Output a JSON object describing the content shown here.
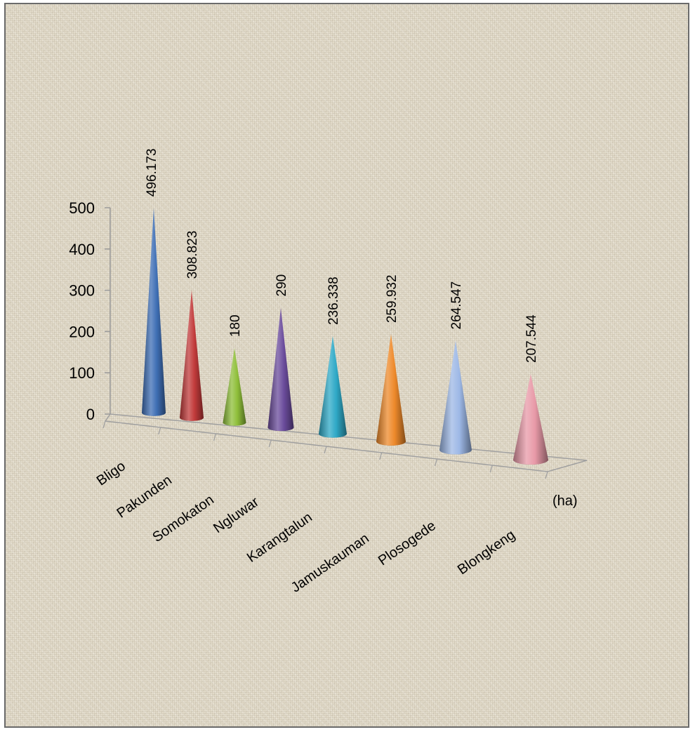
{
  "chart_data": {
    "type": "bar",
    "style": "3d-cone",
    "categories": [
      "Bligo",
      "Pakunden",
      "Somokaton",
      "Ngluwar",
      "Karangtalun",
      "Jamuskauman",
      "Plosogede",
      "Blongkeng"
    ],
    "values": [
      496.173,
      308.823,
      180,
      290,
      236.338,
      259.932,
      264.547,
      207.544
    ],
    "data_labels": [
      "496.173",
      "308.823",
      "180",
      "290",
      "236.338",
      "259.932",
      "264.547",
      "207.544"
    ],
    "title": "",
    "xlabel": "",
    "ylabel": "",
    "unit": "(ha)",
    "ylim": [
      0,
      500
    ],
    "yticks": [
      0,
      100,
      200,
      300,
      400,
      500
    ],
    "grid": false,
    "legend": "none",
    "colors": [
      "#3f6fb5",
      "#c23b3b",
      "#8fbf3a",
      "#6b4c9c",
      "#2fa9c7",
      "#ee8a2b",
      "#9db8e6",
      "#e89aa8"
    ]
  }
}
